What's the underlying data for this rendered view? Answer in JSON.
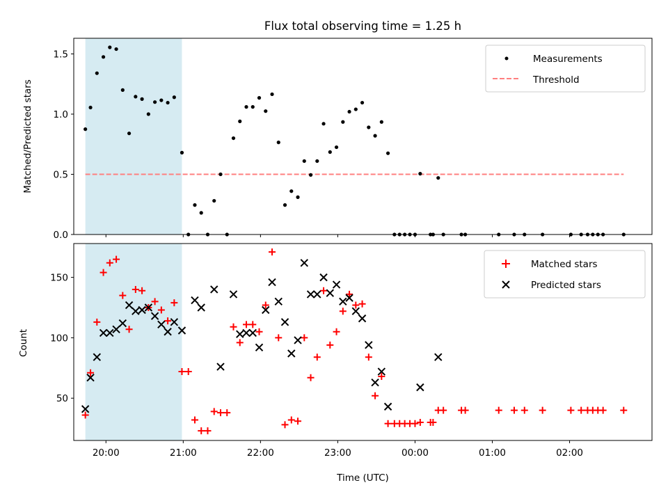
{
  "chart_data": [
    {
      "type": "scatter",
      "title": "Flux total observing time = 1.25 h",
      "xlabel": "",
      "ylabel": "Matched/Predicted stars",
      "ylim": [
        0,
        1.63
      ],
      "yticks": [
        "0.0",
        "0.5",
        "1.0",
        "1.5"
      ],
      "x_range": [
        "19:35",
        "03:04"
      ],
      "shaded_interval": [
        "19:44",
        "20:59"
      ],
      "shade_color": "#add8e6",
      "legend_position": "top-right",
      "series": [
        {
          "name": "Measurements",
          "style": "dots",
          "color": "#000000",
          "points": [
            [
              "19:44",
              0.875
            ],
            [
              "19:48",
              1.055
            ],
            [
              "19:53",
              1.34
            ],
            [
              "19:58",
              1.475
            ],
            [
              "20:03",
              1.555
            ],
            [
              "20:08",
              1.54
            ],
            [
              "20:13",
              1.2
            ],
            [
              "20:18",
              0.84
            ],
            [
              "20:23",
              1.145
            ],
            [
              "20:28",
              1.125
            ],
            [
              "20:33",
              1.0
            ],
            [
              "20:38",
              1.1
            ],
            [
              "20:43",
              1.115
            ],
            [
              "20:48",
              1.095
            ],
            [
              "20:53",
              1.14
            ],
            [
              "20:59",
              0.68
            ],
            [
              "21:04",
              0.0
            ],
            [
              "21:09",
              0.245
            ],
            [
              "21:14",
              0.18
            ],
            [
              "21:19",
              0.0
            ],
            [
              "21:24",
              0.28
            ],
            [
              "21:29",
              0.5
            ],
            [
              "21:34",
              0.0
            ],
            [
              "21:39",
              0.8
            ],
            [
              "21:44",
              0.94
            ],
            [
              "21:49",
              1.06
            ],
            [
              "21:54",
              1.06
            ],
            [
              "21:59",
              1.135
            ],
            [
              "22:04",
              1.025
            ],
            [
              "22:09",
              1.165
            ],
            [
              "22:14",
              0.765
            ],
            [
              "22:19",
              0.245
            ],
            [
              "22:24",
              0.36
            ],
            [
              "22:29",
              0.31
            ],
            [
              "22:34",
              0.61
            ],
            [
              "22:39",
              0.495
            ],
            [
              "22:44",
              0.61
            ],
            [
              "22:49",
              0.92
            ],
            [
              "22:54",
              0.685
            ],
            [
              "22:59",
              0.725
            ],
            [
              "23:04",
              0.935
            ],
            [
              "23:09",
              1.02
            ],
            [
              "23:14",
              1.04
            ],
            [
              "23:19",
              1.095
            ],
            [
              "23:24",
              0.89
            ],
            [
              "23:29",
              0.82
            ],
            [
              "23:34",
              0.935
            ],
            [
              "23:39",
              0.675
            ],
            [
              "23:44",
              0.0
            ],
            [
              "23:48",
              0.0
            ],
            [
              "23:52",
              0.0
            ],
            [
              "23:56",
              0.0
            ],
            [
              "00:00",
              0.0
            ],
            [
              "00:04",
              0.505
            ],
            [
              "00:12",
              0.0
            ],
            [
              "00:14",
              0.0
            ],
            [
              "00:18",
              0.47
            ],
            [
              "00:22",
              0.0
            ],
            [
              "00:36",
              0.0
            ],
            [
              "00:39",
              0.0
            ],
            [
              "01:05",
              0.0
            ],
            [
              "01:17",
              0.0
            ],
            [
              "01:25",
              0.0
            ],
            [
              "01:39",
              0.0
            ],
            [
              "02:01",
              0.0
            ],
            [
              "02:09",
              0.0
            ],
            [
              "02:14",
              0.0
            ],
            [
              "02:18",
              0.0
            ],
            [
              "02:22",
              0.0
            ],
            [
              "02:26",
              0.0
            ],
            [
              "02:42",
              0.0
            ]
          ]
        },
        {
          "name": "Threshold",
          "style": "dashed-line",
          "color": "#ff7f7f",
          "points": [
            [
              "19:44",
              0.5
            ],
            [
              "02:42",
              0.5
            ]
          ]
        }
      ]
    },
    {
      "type": "scatter",
      "title": "",
      "xlabel": "Time (UTC)",
      "ylabel": "Count",
      "ylim": [
        15,
        178
      ],
      "yticks": [
        "50",
        "100",
        "150"
      ],
      "xticks": [
        "20:00",
        "21:00",
        "22:00",
        "23:00",
        "00:00",
        "01:00",
        "02:00"
      ],
      "x_range": [
        "19:35",
        "03:04"
      ],
      "shaded_interval": [
        "19:44",
        "20:59"
      ],
      "shade_color": "#add8e6",
      "legend_position": "top-right",
      "series": [
        {
          "name": "Matched stars",
          "marker": "plus",
          "color": "#ff0000",
          "points": [
            [
              "19:44",
              36
            ],
            [
              "19:48",
              71
            ],
            [
              "19:53",
              113
            ],
            [
              "19:58",
              154
            ],
            [
              "20:03",
              162
            ],
            [
              "20:08",
              165
            ],
            [
              "20:13",
              135
            ],
            [
              "20:18",
              107
            ],
            [
              "20:23",
              140
            ],
            [
              "20:28",
              139
            ],
            [
              "20:33",
              125
            ],
            [
              "20:38",
              130
            ],
            [
              "20:43",
              123
            ],
            [
              "20:48",
              114
            ],
            [
              "20:53",
              129
            ],
            [
              "20:59",
              72
            ],
            [
              "21:04",
              72
            ],
            [
              "21:09",
              32
            ],
            [
              "21:14",
              23
            ],
            [
              "21:19",
              23
            ],
            [
              "21:24",
              39
            ],
            [
              "21:29",
              38
            ],
            [
              "21:34",
              38
            ],
            [
              "21:39",
              109
            ],
            [
              "21:44",
              96
            ],
            [
              "21:49",
              111
            ],
            [
              "21:54",
              111
            ],
            [
              "21:59",
              105
            ],
            [
              "22:04",
              127
            ],
            [
              "22:09",
              171
            ],
            [
              "22:14",
              100
            ],
            [
              "22:19",
              28
            ],
            [
              "22:24",
              32
            ],
            [
              "22:29",
              31
            ],
            [
              "22:34",
              100
            ],
            [
              "22:39",
              67
            ],
            [
              "22:44",
              84
            ],
            [
              "22:49",
              139
            ],
            [
              "22:54",
              94
            ],
            [
              "22:59",
              105
            ],
            [
              "23:04",
              122
            ],
            [
              "23:09",
              136
            ],
            [
              "23:14",
              127
            ],
            [
              "23:19",
              128
            ],
            [
              "23:24",
              84
            ],
            [
              "23:29",
              52
            ],
            [
              "23:34",
              68
            ],
            [
              "23:39",
              29
            ],
            [
              "23:44",
              29
            ],
            [
              "23:48",
              29
            ],
            [
              "23:52",
              29
            ],
            [
              "23:56",
              29
            ],
            [
              "00:00",
              29
            ],
            [
              "00:04",
              30
            ],
            [
              "00:12",
              30
            ],
            [
              "00:14",
              30
            ],
            [
              "00:18",
              40
            ],
            [
              "00:22",
              40
            ],
            [
              "00:36",
              40
            ],
            [
              "00:39",
              40
            ],
            [
              "01:05",
              40
            ],
            [
              "01:17",
              40
            ],
            [
              "01:25",
              40
            ],
            [
              "01:39",
              40
            ],
            [
              "02:01",
              40
            ],
            [
              "02:09",
              40
            ],
            [
              "02:14",
              40
            ],
            [
              "02:18",
              40
            ],
            [
              "02:22",
              40
            ],
            [
              "02:26",
              40
            ],
            [
              "02:42",
              40
            ]
          ]
        },
        {
          "name": "Predicted stars",
          "marker": "x",
          "color": "#000000",
          "points": [
            [
              "19:44",
              41
            ],
            [
              "19:48",
              67
            ],
            [
              "19:53",
              84
            ],
            [
              "19:58",
              104
            ],
            [
              "20:03",
              104
            ],
            [
              "20:08",
              107
            ],
            [
              "20:13",
              112
            ],
            [
              "20:18",
              127
            ],
            [
              "20:23",
              122
            ],
            [
              "20:28",
              123
            ],
            [
              "20:33",
              125
            ],
            [
              "20:38",
              118
            ],
            [
              "20:43",
              111
            ],
            [
              "20:48",
              105
            ],
            [
              "20:53",
              113
            ],
            [
              "20:59",
              106
            ],
            [
              "21:09",
              131
            ],
            [
              "21:14",
              125
            ],
            [
              "21:29",
              76
            ],
            [
              "21:24",
              140
            ],
            [
              "21:39",
              136
            ],
            [
              "21:44",
              103
            ],
            [
              "21:49",
              104
            ],
            [
              "21:54",
              104
            ],
            [
              "21:59",
              92
            ],
            [
              "22:04",
              123
            ],
            [
              "22:09",
              146
            ],
            [
              "22:14",
              130
            ],
            [
              "22:19",
              113
            ],
            [
              "22:24",
              87
            ],
            [
              "22:29",
              98
            ],
            [
              "22:34",
              162
            ],
            [
              "22:39",
              136
            ],
            [
              "22:44",
              136
            ],
            [
              "22:49",
              150
            ],
            [
              "22:54",
              137
            ],
            [
              "22:59",
              144
            ],
            [
              "23:04",
              130
            ],
            [
              "23:09",
              133
            ],
            [
              "23:14",
              122
            ],
            [
              "23:19",
              116
            ],
            [
              "23:24",
              94
            ],
            [
              "23:29",
              63
            ],
            [
              "23:34",
              72
            ],
            [
              "23:39",
              43
            ],
            [
              "00:04",
              59
            ],
            [
              "00:18",
              84
            ]
          ]
        }
      ]
    }
  ]
}
